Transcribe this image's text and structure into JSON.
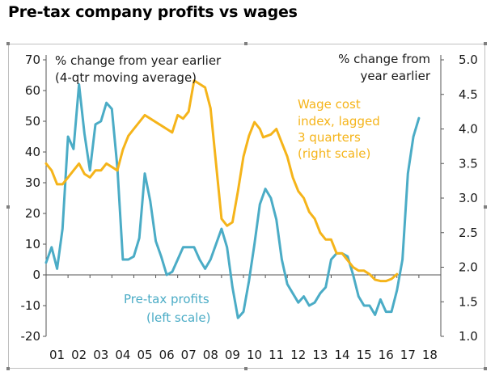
{
  "title": "Pre-tax company profits vs wages",
  "chart_data": {
    "type": "line",
    "x_ticks": [
      "01",
      "02",
      "03",
      "04",
      "05",
      "06",
      "07",
      "08",
      "09",
      "10",
      "11",
      "12",
      "13",
      "14",
      "15",
      "16",
      "17",
      "18"
    ],
    "x_range": [
      2000.5,
      2018.5
    ],
    "y_left": {
      "min": -20,
      "max": 70,
      "ticks": [
        "-20",
        "-10",
        "0",
        "10",
        "20",
        "30",
        "40",
        "50",
        "60",
        "70"
      ]
    },
    "y_right": {
      "min": 1.0,
      "max": 5.0,
      "ticks": [
        "1.0",
        "1.5",
        "2.0",
        "2.5",
        "3.0",
        "3.5",
        "4.0",
        "4.5",
        "5.0"
      ]
    },
    "left_axis_note_1": "% change from year earlier",
    "left_axis_note_2": "(4-qtr moving average)",
    "right_axis_note_1": "% change from",
    "right_axis_note_2": "year earlier",
    "colors": {
      "profits": "#4bacc6",
      "wages": "#f5b41a"
    },
    "series": [
      {
        "name": "Pre-tax profits",
        "axis": "left",
        "label_1": "Pre-tax profits",
        "label_2": "(left scale)",
        "points": [
          [
            2000.0,
            4
          ],
          [
            2000.25,
            9
          ],
          [
            2000.5,
            2
          ],
          [
            2000.75,
            15
          ],
          [
            2001.0,
            45
          ],
          [
            2001.25,
            41
          ],
          [
            2001.5,
            62
          ],
          [
            2001.75,
            46
          ],
          [
            2002.0,
            34
          ],
          [
            2002.25,
            49
          ],
          [
            2002.5,
            50
          ],
          [
            2002.75,
            56
          ],
          [
            2003.0,
            54
          ],
          [
            2003.25,
            35
          ],
          [
            2003.5,
            5
          ],
          [
            2003.75,
            5
          ],
          [
            2004.0,
            6
          ],
          [
            2004.25,
            12
          ],
          [
            2004.5,
            33
          ],
          [
            2004.75,
            24
          ],
          [
            2005.0,
            11
          ],
          [
            2005.25,
            6
          ],
          [
            2005.5,
            0
          ],
          [
            2005.75,
            1
          ],
          [
            2006.0,
            5
          ],
          [
            2006.25,
            9
          ],
          [
            2006.5,
            9
          ],
          [
            2006.75,
            9
          ],
          [
            2007.0,
            5
          ],
          [
            2007.25,
            2
          ],
          [
            2007.5,
            5
          ],
          [
            2007.75,
            10
          ],
          [
            2008.0,
            15
          ],
          [
            2008.25,
            9
          ],
          [
            2008.5,
            -4
          ],
          [
            2008.75,
            -14
          ],
          [
            2009.0,
            -12
          ],
          [
            2009.25,
            -2
          ],
          [
            2009.5,
            10
          ],
          [
            2009.75,
            23
          ],
          [
            2010.0,
            28
          ],
          [
            2010.25,
            25
          ],
          [
            2010.5,
            18
          ],
          [
            2010.75,
            5
          ],
          [
            2011.0,
            -3
          ],
          [
            2011.25,
            -6
          ],
          [
            2011.5,
            -9
          ],
          [
            2011.75,
            -7
          ],
          [
            2012.0,
            -10
          ],
          [
            2012.25,
            -9
          ],
          [
            2012.5,
            -6
          ],
          [
            2012.75,
            -4
          ],
          [
            2013.0,
            5
          ],
          [
            2013.25,
            7
          ],
          [
            2013.5,
            7
          ],
          [
            2013.75,
            6
          ],
          [
            2014.0,
            0
          ],
          [
            2014.25,
            -7
          ],
          [
            2014.5,
            -10
          ],
          [
            2014.75,
            -10
          ],
          [
            2015.0,
            -13
          ],
          [
            2015.25,
            -8
          ],
          [
            2015.5,
            -12
          ],
          [
            2015.75,
            -12
          ],
          [
            2016.0,
            -5
          ],
          [
            2016.25,
            5
          ],
          [
            2016.5,
            33
          ],
          [
            2016.75,
            45
          ],
          [
            2017.0,
            51
          ]
        ]
      },
      {
        "name": "Wage cost index, lagged 3 quarters",
        "axis": "right",
        "label_1": "Wage cost",
        "label_2": "index, lagged",
        "label_3": "3 quarters",
        "label_4": "(right scale)",
        "points": [
          [
            2000.0,
            3.5
          ],
          [
            2000.25,
            3.4
          ],
          [
            2000.5,
            3.2
          ],
          [
            2000.75,
            3.2
          ],
          [
            2001.0,
            3.3
          ],
          [
            2001.25,
            3.4
          ],
          [
            2001.5,
            3.5
          ],
          [
            2001.75,
            3.35
          ],
          [
            2002.0,
            3.3
          ],
          [
            2002.25,
            3.4
          ],
          [
            2002.5,
            3.4
          ],
          [
            2002.75,
            3.5
          ],
          [
            2003.0,
            3.45
          ],
          [
            2003.25,
            3.4
          ],
          [
            2003.5,
            3.7
          ],
          [
            2003.75,
            3.9
          ],
          [
            2004.0,
            4.0
          ],
          [
            2004.25,
            4.1
          ],
          [
            2004.5,
            4.2
          ],
          [
            2004.75,
            4.15
          ],
          [
            2005.0,
            4.1
          ],
          [
            2005.25,
            4.05
          ],
          [
            2005.5,
            4.0
          ],
          [
            2005.75,
            3.95
          ],
          [
            2006.0,
            4.2
          ],
          [
            2006.25,
            4.15
          ],
          [
            2006.5,
            4.25
          ],
          [
            2006.75,
            4.7
          ],
          [
            2007.0,
            4.65
          ],
          [
            2007.25,
            4.6
          ],
          [
            2007.5,
            4.3
          ],
          [
            2007.75,
            3.5
          ],
          [
            2008.0,
            2.7
          ],
          [
            2008.25,
            2.6
          ],
          [
            2008.5,
            2.65
          ],
          [
            2008.75,
            3.1
          ],
          [
            2009.0,
            3.6
          ],
          [
            2009.25,
            3.9
          ],
          [
            2009.5,
            4.1
          ],
          [
            2009.75,
            4.0
          ],
          [
            2009.9,
            3.88
          ],
          [
            2010.25,
            3.92
          ],
          [
            2010.5,
            4.0
          ],
          [
            2010.75,
            3.8
          ],
          [
            2011.0,
            3.6
          ],
          [
            2011.25,
            3.3
          ],
          [
            2011.5,
            3.1
          ],
          [
            2011.75,
            3.0
          ],
          [
            2012.0,
            2.8
          ],
          [
            2012.25,
            2.7
          ],
          [
            2012.5,
            2.5
          ],
          [
            2012.75,
            2.4
          ],
          [
            2013.0,
            2.4
          ],
          [
            2013.25,
            2.2
          ],
          [
            2013.5,
            2.2
          ],
          [
            2013.75,
            2.1
          ],
          [
            2014.0,
            2.0
          ],
          [
            2014.25,
            1.95
          ],
          [
            2014.5,
            1.95
          ],
          [
            2014.75,
            1.9
          ],
          [
            2015.0,
            1.82
          ],
          [
            2015.25,
            1.8
          ],
          [
            2015.5,
            1.8
          ],
          [
            2015.75,
            1.83
          ],
          [
            2016.0,
            1.9
          ]
        ]
      }
    ]
  }
}
